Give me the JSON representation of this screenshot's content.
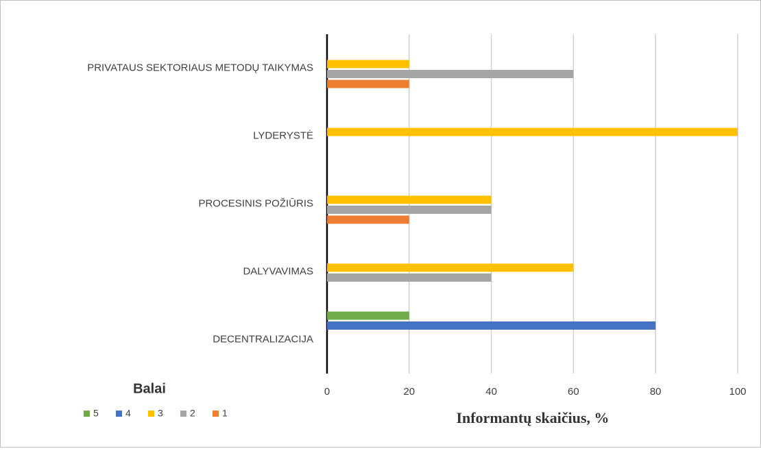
{
  "chart_data": {
    "type": "bar",
    "orientation": "horizontal",
    "categories": [
      "PRIVATAUS SEKTORIAUS METODŲ TAIKYMAS",
      "LYDERYSTĖ",
      "PROCESINIS POŽIŪRIS",
      "DALYVAVIMAS",
      "DECENTRALIZACIJA"
    ],
    "series": [
      {
        "name": "5",
        "color": "#70ad47",
        "values": [
          0,
          0,
          0,
          0,
          20
        ]
      },
      {
        "name": "4",
        "color": "#4472c4",
        "values": [
          0,
          0,
          0,
          0,
          80
        ]
      },
      {
        "name": "3",
        "color": "#ffc000",
        "values": [
          20,
          100,
          40,
          60,
          0
        ]
      },
      {
        "name": "2",
        "color": "#a5a5a5",
        "values": [
          60,
          0,
          40,
          40,
          0
        ]
      },
      {
        "name": "1",
        "color": "#ed7d31",
        "values": [
          20,
          0,
          20,
          0,
          0
        ]
      }
    ],
    "xlim": [
      0,
      100
    ],
    "xticks": [
      0,
      20,
      40,
      60,
      80,
      100
    ],
    "grid": true,
    "xlabel": "Informantų skaičius, %",
    "legend_title": "Balai",
    "legend": "bottom-left"
  }
}
